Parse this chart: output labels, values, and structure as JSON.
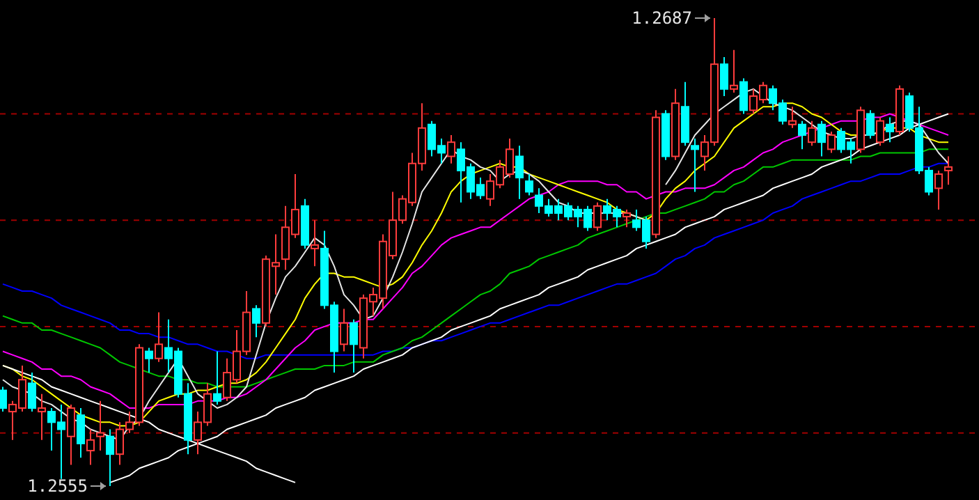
{
  "chart_data": {
    "type": "candlestick",
    "categories": [
      null,
      null,
      null,
      null,
      null,
      null,
      null,
      null,
      null,
      null,
      null,
      null,
      null,
      null,
      null,
      null,
      null,
      null,
      null,
      null,
      null,
      null,
      null,
      null,
      null,
      null,
      null,
      null,
      null,
      null,
      null,
      null,
      null,
      null,
      null,
      null,
      null,
      null,
      null,
      null,
      null,
      null,
      null,
      null,
      null,
      null,
      null,
      null,
      null,
      null,
      null,
      null,
      null,
      null,
      null,
      null,
      null,
      null,
      null,
      null,
      null,
      null,
      null,
      null,
      null,
      null,
      null,
      null,
      null,
      null,
      null,
      null,
      null,
      null,
      null,
      null,
      null,
      null,
      null,
      null,
      null,
      null,
      null,
      null,
      null,
      null,
      null,
      null,
      null,
      null,
      null,
      null,
      null,
      null,
      null,
      null,
      null,
      null
    ],
    "ohlc": [
      [
        1.2582,
        1.2583,
        1.2576,
        1.2577
      ],
      [
        1.2576,
        1.2579,
        1.2568,
        1.2578
      ],
      [
        1.2577,
        1.2589,
        1.2576,
        1.2585
      ],
      [
        1.2584,
        1.2587,
        1.2576,
        1.2577
      ],
      [
        1.2576,
        1.2581,
        1.2568,
        1.2577
      ],
      [
        1.2576,
        1.2577,
        1.2565,
        1.2573
      ],
      [
        1.2573,
        1.2578,
        1.2557,
        1.2571
      ],
      [
        1.2569,
        1.2578,
        1.2561,
        1.2577
      ],
      [
        1.2575,
        1.2577,
        1.2563,
        1.2567
      ],
      [
        1.2565,
        1.2571,
        1.2561,
        1.2568
      ],
      [
        1.2569,
        1.2579,
        1.2565,
        1.257
      ],
      [
        1.2569,
        1.2571,
        1.2555,
        1.2564
      ],
      [
        1.2564,
        1.2573,
        1.2561,
        1.2571
      ],
      [
        1.2571,
        1.2576,
        1.257,
        1.2573
      ],
      [
        1.2573,
        1.2595,
        1.2572,
        1.2594
      ],
      [
        1.2593,
        1.2594,
        1.2587,
        1.2591
      ],
      [
        1.2591,
        1.2604,
        1.259,
        1.2595
      ],
      [
        1.2594,
        1.2602,
        1.2587,
        1.2591
      ],
      [
        1.2593,
        1.2594,
        1.258,
        1.2581
      ],
      [
        1.2581,
        1.2584,
        1.2564,
        1.2568
      ],
      [
        1.2568,
        1.2576,
        1.2564,
        1.2573
      ],
      [
        1.2573,
        1.2584,
        1.2572,
        1.2581
      ],
      [
        1.2581,
        1.2593,
        1.2578,
        1.2579
      ],
      [
        1.258,
        1.2591,
        1.2579,
        1.2587
      ],
      [
        1.2585,
        1.2599,
        1.2584,
        1.2593
      ],
      [
        1.2593,
        1.261,
        1.2592,
        1.2604
      ],
      [
        1.2605,
        1.2606,
        1.2597,
        1.2601
      ],
      [
        1.2601,
        1.262,
        1.26,
        1.2619
      ],
      [
        1.2617,
        1.2626,
        1.2609,
        1.2618
      ],
      [
        1.2619,
        1.2634,
        1.2616,
        1.2628
      ],
      [
        1.2626,
        1.2643,
        1.2625,
        1.2633
      ],
      [
        1.2634,
        1.2636,
        1.2622,
        1.2623
      ],
      [
        1.2622,
        1.263,
        1.2617,
        1.2623
      ],
      [
        1.2622,
        1.2627,
        1.2605,
        1.2606
      ],
      [
        1.2606,
        1.2607,
        1.2587,
        1.2593
      ],
      [
        1.2595,
        1.2605,
        1.2593,
        1.2601
      ],
      [
        1.2601,
        1.2602,
        1.2587,
        1.2595
      ],
      [
        1.2594,
        1.2609,
        1.2591,
        1.2608
      ],
      [
        1.2607,
        1.2611,
        1.2603,
        1.2609
      ],
      [
        1.2608,
        1.2626,
        1.2605,
        1.2624
      ],
      [
        1.262,
        1.2638,
        1.2619,
        1.263
      ],
      [
        1.263,
        1.2637,
        1.2629,
        1.2636
      ],
      [
        1.2635,
        1.2649,
        1.2634,
        1.2646
      ],
      [
        1.2646,
        1.2663,
        1.2644,
        1.2656
      ],
      [
        1.2657,
        1.2658,
        1.2648,
        1.265
      ],
      [
        1.2651,
        1.2653,
        1.2646,
        1.2649
      ],
      [
        1.2648,
        1.2654,
        1.2646,
        1.2652
      ],
      [
        1.265,
        1.2652,
        1.2635,
        1.2644
      ],
      [
        1.2645,
        1.2646,
        1.2636,
        1.2638
      ],
      [
        1.264,
        1.2642,
        1.2636,
        1.2637
      ],
      [
        1.2636,
        1.2643,
        1.2634,
        1.2641
      ],
      [
        1.264,
        1.2647,
        1.2639,
        1.2645
      ],
      [
        1.2643,
        1.2653,
        1.2642,
        1.265
      ],
      [
        1.2648,
        1.2651,
        1.2636,
        1.2642
      ],
      [
        1.2641,
        1.2643,
        1.2637,
        1.2638
      ],
      [
        1.2637,
        1.2639,
        1.2632,
        1.2634
      ],
      [
        1.2634,
        1.2636,
        1.2631,
        1.2632
      ],
      [
        1.2634,
        1.2636,
        1.263,
        1.2632
      ],
      [
        1.2634,
        1.2635,
        1.263,
        1.2631
      ],
      [
        1.2633,
        1.2634,
        1.2628,
        1.2631
      ],
      [
        1.2633,
        1.2634,
        1.2627,
        1.2628
      ],
      [
        1.2628,
        1.2635,
        1.2627,
        1.2634
      ],
      [
        1.2634,
        1.2636,
        1.263,
        1.2632
      ],
      [
        1.2633,
        1.2634,
        1.2628,
        1.2631
      ],
      [
        1.2631,
        1.2633,
        1.2628,
        1.2632
      ],
      [
        1.263,
        1.2633,
        1.2627,
        1.2628
      ],
      [
        1.263,
        1.2631,
        1.2622,
        1.2624
      ],
      [
        1.2626,
        1.2661,
        1.2625,
        1.2659
      ],
      [
        1.266,
        1.2661,
        1.2647,
        1.2648
      ],
      [
        1.2648,
        1.2667,
        1.2647,
        1.2663
      ],
      [
        1.2662,
        1.2669,
        1.2651,
        1.2652
      ],
      [
        1.2651,
        1.2653,
        1.2638,
        1.265
      ],
      [
        1.2648,
        1.2654,
        1.2644,
        1.2652
      ],
      [
        1.2652,
        1.2687,
        1.2651,
        1.2674
      ],
      [
        1.2674,
        1.2676,
        1.2665,
        1.2667
      ],
      [
        1.2667,
        1.2678,
        1.2666,
        1.2668
      ],
      [
        1.2669,
        1.267,
        1.266,
        1.2661
      ],
      [
        1.2661,
        1.2667,
        1.266,
        1.2665
      ],
      [
        1.2664,
        1.2669,
        1.2663,
        1.2668
      ],
      [
        1.2667,
        1.2668,
        1.2661,
        1.2663
      ],
      [
        1.2663,
        1.2664,
        1.2657,
        1.2658
      ],
      [
        1.2657,
        1.2662,
        1.2656,
        1.2658
      ],
      [
        1.2657,
        1.2658,
        1.265,
        1.2654
      ],
      [
        1.2652,
        1.2658,
        1.2651,
        1.2656
      ],
      [
        1.2657,
        1.2658,
        1.2648,
        1.2652
      ],
      [
        1.265,
        1.2655,
        1.2649,
        1.2654
      ],
      [
        1.2655,
        1.2656,
        1.2649,
        1.265
      ],
      [
        1.2652,
        1.2653,
        1.2646,
        1.265
      ],
      [
        1.265,
        1.2662,
        1.2649,
        1.2661
      ],
      [
        1.266,
        1.2661,
        1.2653,
        1.2654
      ],
      [
        1.2652,
        1.2659,
        1.2651,
        1.2658
      ],
      [
        1.2657,
        1.2659,
        1.2652,
        1.2655
      ],
      [
        1.2655,
        1.2668,
        1.2654,
        1.2667
      ],
      [
        1.2665,
        1.2666,
        1.2655,
        1.2656
      ],
      [
        1.2656,
        1.2662,
        1.2643,
        1.2644
      ],
      [
        1.2644,
        1.2645,
        1.2637,
        1.2638
      ],
      [
        1.2639,
        1.2644,
        1.2633,
        1.2643
      ],
      [
        1.2644,
        1.2648,
        1.264,
        1.2645
      ]
    ],
    "series": [
      {
        "type": "line",
        "color": "#0000ff",
        "values": [
          1.2612,
          1.2611,
          1.261,
          1.261,
          1.2609,
          1.2608,
          1.2606,
          1.2605,
          1.2604,
          1.2603,
          1.2602,
          1.2601,
          1.2599,
          1.2599,
          1.2598,
          1.2598,
          1.2597,
          1.2597,
          1.2596,
          1.2595,
          1.2595,
          1.2594,
          1.2593,
          1.2593,
          1.2592,
          1.2591,
          1.2591,
          1.2592,
          1.2592,
          1.2592,
          1.2592,
          1.2592,
          1.2592,
          1.2592,
          1.2592,
          1.2592,
          1.2592,
          1.2592,
          1.2592,
          1.2593,
          1.2593,
          1.2594,
          1.2594,
          1.2595,
          1.2596,
          1.2596,
          1.2597,
          1.2598,
          1.2599,
          1.26,
          1.2601,
          1.2601,
          1.2602,
          1.2603,
          1.2604,
          1.2605,
          1.2606,
          1.2606,
          1.2607,
          1.2608,
          1.2609,
          1.261,
          1.2611,
          1.2612,
          1.2612,
          1.2613,
          1.2614,
          1.2615,
          1.2617,
          1.2619,
          1.262,
          1.2622,
          1.2623,
          1.2625,
          1.2626,
          1.2627,
          1.2628,
          1.2629,
          1.263,
          1.2632,
          1.2633,
          1.2634,
          1.2636,
          1.2637,
          1.2638,
          1.2639,
          1.264,
          1.2641,
          1.2641,
          1.2642,
          1.2643,
          1.2643,
          1.2643,
          1.2644,
          1.2645,
          1.2645,
          1.2646,
          1.2646
        ]
      },
      {
        "type": "line",
        "color": "#00c800",
        "values": [
          1.2603,
          1.2602,
          1.2601,
          1.2601,
          1.2599,
          1.2599,
          1.2598,
          1.2597,
          1.2596,
          1.2595,
          1.2594,
          1.2592,
          1.259,
          1.2589,
          1.2588,
          1.2587,
          1.2586,
          1.2586,
          1.2585,
          1.2585,
          1.2584,
          1.2584,
          1.2583,
          1.2583,
          1.2583,
          1.2583,
          1.2584,
          1.2585,
          1.2586,
          1.2587,
          1.2588,
          1.2588,
          1.2588,
          1.2589,
          1.2589,
          1.2589,
          1.259,
          1.259,
          1.259,
          1.2592,
          1.2593,
          1.2594,
          1.2596,
          1.2597,
          1.2599,
          1.2601,
          1.2603,
          1.2605,
          1.2607,
          1.2609,
          1.261,
          1.2612,
          1.2615,
          1.2616,
          1.2617,
          1.2619,
          1.262,
          1.2621,
          1.2622,
          1.2623,
          1.2625,
          1.2626,
          1.2627,
          1.2628,
          1.2629,
          1.263,
          1.2631,
          1.2632,
          1.2632,
          1.2633,
          1.2634,
          1.2635,
          1.2636,
          1.2638,
          1.2638,
          1.264,
          1.2641,
          1.2643,
          1.2645,
          1.2645,
          1.2646,
          1.2647,
          1.2647,
          1.2647,
          1.2647,
          1.2647,
          1.2647,
          1.2647,
          1.2648,
          1.2648,
          1.2649,
          1.2649,
          1.2649,
          1.2649,
          1.2649,
          1.265,
          1.265,
          1.265
        ]
      },
      {
        "type": "line",
        "color": "#ff00ff",
        "values": [
          1.2593,
          1.2592,
          1.2591,
          1.259,
          1.2588,
          1.2588,
          1.2586,
          1.2586,
          1.2585,
          1.2583,
          1.2582,
          1.2581,
          1.2579,
          1.2577,
          1.2577,
          1.2577,
          1.2578,
          1.2578,
          1.2578,
          1.2578,
          1.2579,
          1.2579,
          1.2579,
          1.258,
          1.258,
          1.2581,
          1.2583,
          1.2585,
          1.2588,
          1.2591,
          1.2594,
          1.2596,
          1.2599,
          1.26,
          1.2601,
          1.2601,
          1.2601,
          1.2602,
          1.2602,
          1.2605,
          1.2608,
          1.2611,
          1.2615,
          1.2617,
          1.262,
          1.2623,
          1.2625,
          1.2626,
          1.2627,
          1.2628,
          1.2628,
          1.263,
          1.2632,
          1.2634,
          1.2636,
          1.2637,
          1.2638,
          1.264,
          1.2641,
          1.2641,
          1.2641,
          1.2641,
          1.264,
          1.264,
          1.2638,
          1.2638,
          1.2636,
          1.2637,
          1.2638,
          1.2638,
          1.2639,
          1.2639,
          1.2639,
          1.264,
          1.2642,
          1.2644,
          1.2645,
          1.2647,
          1.2649,
          1.265,
          1.2652,
          1.2653,
          1.2654,
          1.2655,
          1.2656,
          1.2657,
          1.2658,
          1.2658,
          1.2658,
          1.2659,
          1.2659,
          1.266,
          1.2659,
          1.2658,
          1.2657,
          1.2656,
          1.2655,
          1.2654
        ]
      },
      {
        "type": "line",
        "color": "#ffff00",
        "values": [
          1.2589,
          1.2588,
          1.2586,
          1.2585,
          1.2583,
          1.2581,
          1.2579,
          1.2577,
          1.2575,
          1.2574,
          1.2573,
          1.2573,
          1.2572,
          1.2572,
          1.2573,
          1.2576,
          1.2579,
          1.258,
          1.2581,
          1.2581,
          1.2582,
          1.2582,
          1.2583,
          1.2584,
          1.2584,
          1.2585,
          1.2587,
          1.259,
          1.2594,
          1.2598,
          1.2602,
          1.2608,
          1.2612,
          1.2615,
          1.2615,
          1.2614,
          1.2614,
          1.2613,
          1.2612,
          1.2611,
          1.2612,
          1.2614,
          1.2618,
          1.2623,
          1.2627,
          1.2632,
          1.2638,
          1.2641,
          1.2643,
          1.2644,
          1.2645,
          1.2646,
          1.2645,
          1.2645,
          1.2643,
          1.2642,
          1.2641,
          1.264,
          1.2639,
          1.2638,
          1.2637,
          1.2636,
          1.2635,
          1.2633,
          1.2632,
          1.2631,
          1.263,
          1.2632,
          1.2636,
          1.2639,
          1.2641,
          1.2644,
          1.2646,
          1.2648,
          1.2652,
          1.2656,
          1.2658,
          1.266,
          1.2662,
          1.2662,
          1.2663,
          1.2663,
          1.2662,
          1.266,
          1.2659,
          1.2657,
          1.2655,
          1.2654,
          1.2654,
          1.2654,
          1.2655,
          1.2656,
          1.2656,
          1.2656,
          1.2654,
          1.2653,
          1.2652,
          1.2652
        ]
      },
      {
        "type": "line",
        "color": "#e6e6e6",
        "values": [
          1.2585,
          1.2583,
          1.2582,
          1.2581,
          1.2579,
          1.2578,
          1.2576,
          1.2574,
          1.2573,
          1.2571,
          1.257,
          1.2569,
          1.2568,
          1.2572,
          1.2574,
          1.2579,
          1.2583,
          1.2587,
          1.2591,
          1.2586,
          1.2581,
          1.2579,
          1.2577,
          1.2578,
          1.258,
          1.2583,
          1.2592,
          1.2601,
          1.2608,
          1.2614,
          1.2617,
          1.2621,
          1.2625,
          1.2623,
          1.2617,
          1.2609,
          1.2606,
          1.2602,
          1.2603,
          1.2608,
          1.2614,
          1.2621,
          1.2629,
          1.2638,
          1.2642,
          1.2646,
          1.265,
          1.2648,
          1.2647,
          1.2645,
          1.2644,
          1.2641,
          1.2643,
          1.2644,
          1.2643,
          1.2641,
          1.2638,
          1.2635,
          1.2634,
          1.2632,
          1.2632,
          1.2632,
          1.2632,
          1.2632,
          1.2632,
          1.2631,
          1.263,
          null,
          1.264,
          1.2644,
          1.2649,
          1.2654,
          1.2657,
          1.266,
          1.2662,
          1.2664,
          1.2666,
          1.2667,
          1.2665,
          1.2663,
          1.2662,
          1.2661,
          1.2659,
          1.2657,
          1.2655,
          1.2654,
          1.2653,
          1.2653,
          1.2654,
          1.2654,
          1.2655,
          1.2657,
          1.2658,
          1.2658,
          1.2657,
          1.2653,
          1.2649,
          1.2646
        ]
      },
      {
        "type": "line",
        "color": "#ffffff",
        "values": [
          1.2589,
          1.2588,
          1.2587,
          1.2586,
          1.2585,
          1.2583,
          1.2582,
          1.2581,
          1.258,
          1.2579,
          1.2578,
          1.2577,
          1.2576,
          1.2575,
          1.2574,
          1.2573,
          1.2571,
          1.257,
          1.2569,
          1.2568,
          1.2567,
          1.2566,
          1.2565,
          1.2564,
          1.2563,
          1.2562,
          1.256,
          1.2559,
          1.2558,
          1.2557,
          1.2556,
          null,
          null,
          null,
          null,
          null,
          null,
          null,
          null,
          null,
          null,
          null,
          null,
          null,
          null,
          null,
          null,
          null,
          null,
          null,
          null,
          null,
          null,
          null,
          null,
          null,
          null,
          null,
          null,
          null,
          null,
          null,
          null,
          null,
          null,
          null,
          null,
          null,
          null,
          null,
          null,
          null,
          null,
          null,
          null,
          null,
          null,
          null,
          null,
          null,
          null,
          null,
          null,
          null,
          null,
          null,
          null,
          null,
          null,
          null,
          null,
          null,
          null,
          null,
          null,
          null,
          null,
          null
        ]
      },
      {
        "type": "line",
        "color": "#ffffff",
        "values": [
          null,
          null,
          null,
          null,
          null,
          null,
          null,
          null,
          null,
          null,
          null,
          1.2556,
          1.2557,
          1.2558,
          1.256,
          1.2561,
          1.2562,
          1.2563,
          1.2565,
          1.2566,
          1.2567,
          1.2568,
          1.2569,
          1.2571,
          1.2572,
          1.2573,
          1.2574,
          1.2575,
          1.2577,
          1.2578,
          1.2579,
          1.258,
          1.2582,
          1.2583,
          1.2584,
          1.2585,
          1.2586,
          1.2588,
          1.2589,
          1.259,
          1.2591,
          1.2592,
          1.2594,
          1.2595,
          1.2596,
          1.2597,
          1.2599,
          1.26,
          1.2601,
          1.2602,
          1.2603,
          1.2605,
          1.2606,
          1.2607,
          1.2608,
          1.2609,
          1.2611,
          1.2612,
          1.2613,
          1.2614,
          1.2616,
          1.2617,
          1.2618,
          1.2619,
          1.262,
          1.2622,
          1.2623,
          1.2624,
          1.2625,
          1.2626,
          1.2628,
          1.2629,
          1.263,
          1.2631,
          1.2633,
          1.2634,
          1.2635,
          1.2636,
          1.2637,
          1.2639,
          1.264,
          1.2641,
          1.2642,
          1.2643,
          1.2645,
          1.2646,
          1.2647,
          1.2648,
          1.265,
          1.2651,
          1.2652,
          1.2653,
          1.2654,
          1.2656,
          1.2657,
          1.2658,
          1.2659,
          1.266
        ]
      }
    ],
    "ref_lines": [
      {
        "axis": "y",
        "value": 1.257,
        "color": "#a00000",
        "line_style": "dashed"
      },
      {
        "axis": "y",
        "value": 1.26,
        "color": "#a00000",
        "line_style": "dashed"
      },
      {
        "axis": "y",
        "value": 1.263,
        "color": "#a00000",
        "line_style": "dashed"
      },
      {
        "axis": "y",
        "value": 1.266,
        "color": "#a00000",
        "line_style": "dashed"
      }
    ],
    "annotations": [
      "1.2687",
      "1.2555"
    ]
  }
}
